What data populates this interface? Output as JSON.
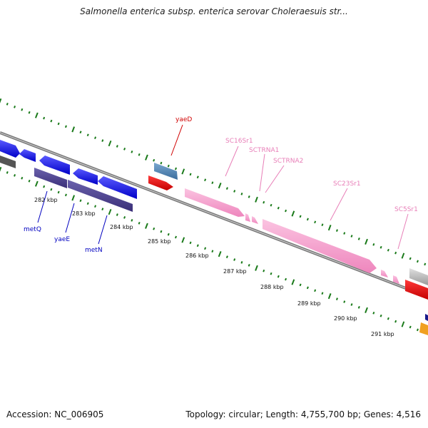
{
  "title": "Salmonella enterica subsp. enterica serovar Choleraesuis str...",
  "footer": {
    "accession": "Accession: NC_006905",
    "summary": "Topology: circular; Length: 4,755,700 bp; Genes: 4,516"
  },
  "kbp_labels": [
    "282 kbp",
    "283 kbp",
    "284 kbp",
    "285 kbp",
    "286 kbp",
    "287 kbp",
    "288 kbp",
    "289 kbp",
    "290 kbp",
    "291 kbp"
  ],
  "gene_labels": {
    "yaeD": "yaeD",
    "metQ": "metQ",
    "yaeE": "yaeE",
    "metN": "metN",
    "SC16Sr1": "SC16Sr1",
    "SCTRNA1": "SCTRNA1",
    "SCTRNA2": "SCTRNA2",
    "SC23Sr1": "SC23Sr1",
    "SC5Sr1": "SC5Sr1"
  },
  "colors": {
    "tick": "#1a7a1a",
    "backbone": "#888888",
    "blue_gene": "#1010e0",
    "purple_gene": "#4a3f8f",
    "steel_gene": "#4a7fb0",
    "red_gene": "#e00000",
    "pink_rna": "#f59ccc",
    "label_blue": "#0000c0",
    "label_red": "#d00000",
    "label_pink": "#e87fb8"
  }
}
